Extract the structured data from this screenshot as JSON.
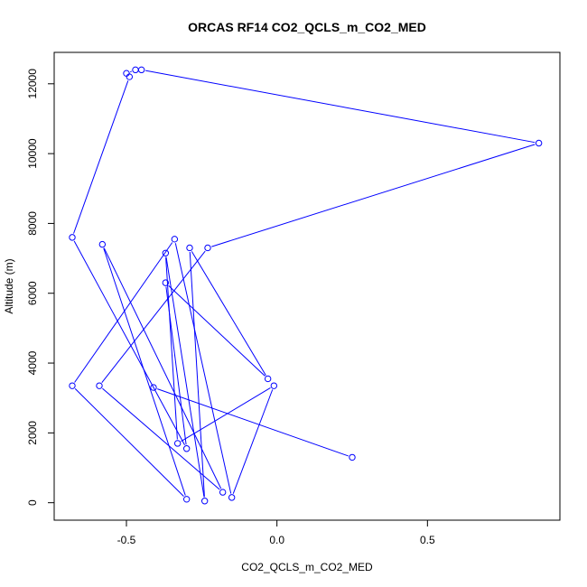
{
  "chart_data": {
    "type": "line",
    "title": "ORCAS RF14 CO2_QCLS_m_CO2_MED",
    "xlabel": "CO2_QCLS_m_CO2_MED",
    "ylabel": "Altitude (m)",
    "xlim": [
      -0.74,
      0.94
    ],
    "ylim": [
      -500,
      12900
    ],
    "x_ticks": [
      -0.5,
      0.0,
      0.5
    ],
    "x_tick_labels": [
      "-0.5",
      "0.0",
      "0.5"
    ],
    "y_ticks": [
      0,
      2000,
      4000,
      6000,
      8000,
      10000,
      12000
    ],
    "y_tick_labels": [
      "0",
      "2000",
      "4000",
      "6000",
      "8000",
      "10000",
      "12000"
    ],
    "grid": false,
    "series_color": "#0000ff",
    "series": [
      {
        "marker": "open-circle",
        "points": [
          {
            "x": -0.5,
            "y": 12300
          },
          {
            "x": -0.47,
            "y": 12400
          },
          {
            "x": -0.45,
            "y": 12400
          },
          {
            "x": 0.87,
            "y": 10300
          },
          {
            "x": -0.23,
            "y": 7300
          },
          {
            "x": -0.59,
            "y": 3350
          },
          {
            "x": -0.18,
            "y": 300
          },
          {
            "x": -0.58,
            "y": 7400
          },
          {
            "x": -0.3,
            "y": 100
          },
          {
            "x": -0.68,
            "y": 3350
          },
          {
            "x": -0.34,
            "y": 7550
          },
          {
            "x": -0.15,
            "y": 150
          },
          {
            "x": -0.01,
            "y": 3350
          },
          {
            "x": -0.33,
            "y": 1700
          },
          {
            "x": -0.37,
            "y": 7150
          },
          {
            "x": -0.24,
            "y": 50
          },
          {
            "x": -0.29,
            "y": 7300
          },
          {
            "x": -0.03,
            "y": 3550
          },
          {
            "x": -0.37,
            "y": 6300
          },
          {
            "x": -0.3,
            "y": 1550
          },
          {
            "x": -0.68,
            "y": 7600
          },
          {
            "x": -0.49,
            "y": 12200
          }
        ]
      },
      {
        "marker": "open-circle",
        "points": [
          {
            "x": -0.41,
            "y": 3300
          },
          {
            "x": 0.25,
            "y": 1300
          }
        ]
      }
    ]
  }
}
